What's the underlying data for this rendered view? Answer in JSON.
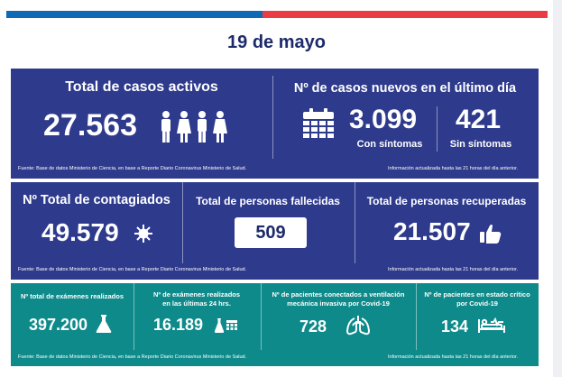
{
  "date": "19 de mayo",
  "row1": {
    "active": {
      "title": "Total de casos activos",
      "value": "27.563"
    },
    "new": {
      "title": "Nº de casos nuevos en el último día",
      "with_symptoms_value": "3.099",
      "with_symptoms_label": "Con síntomas",
      "without_symptoms_value": "421",
      "without_symptoms_label": "Sin síntomas"
    },
    "source": "Fuente: Base de datos Ministerio de Ciencia, en base a Reporte Diario Coronavirus Ministerio de Salud.",
    "updated": "Información actualizada hasta las 21 horas  del día anterior."
  },
  "row2": {
    "infected": {
      "title": "Nº Total de contagiados",
      "value": "49.579"
    },
    "deaths": {
      "title": "Total de personas fallecidas",
      "value": "509"
    },
    "recovered": {
      "title": "Total de personas recuperadas",
      "value": "21.507"
    },
    "source": "Fuente: Base de datos Ministerio de Ciencia, en base a Reporte Diario Coronavirus Ministerio de Salud.",
    "updated": "Información actualizada hasta las 21 horas  del día anterior."
  },
  "row3": {
    "exams_total": {
      "title": "Nº total de exámenes realizados",
      "value": "397.200"
    },
    "exams_24h": {
      "title_line1": "Nº de exámenes realizados",
      "title_line2": "en las últimas 24 hrs.",
      "value": "16.189"
    },
    "ventilation": {
      "title_line1": "Nº de pacientes conectados a ventilación",
      "title_line2": "mecánica invasiva por Covid-19",
      "value": "728"
    },
    "critical": {
      "title_line1": "Nº de pacientes en estado crítico",
      "title_line2": "por Covid-19",
      "value": "134"
    },
    "source": "Fuente: Base de datos Ministerio de Ciencia, en base a Reporte Diario Coronavirus Ministerio de Salud.",
    "updated": "Información actualizada hasta las 21 horas  del día anterior."
  },
  "colors": {
    "navy": "#2e3a8c",
    "teal": "#0e8a8a",
    "blue": "#0f69b4",
    "red": "#eb3c46"
  }
}
